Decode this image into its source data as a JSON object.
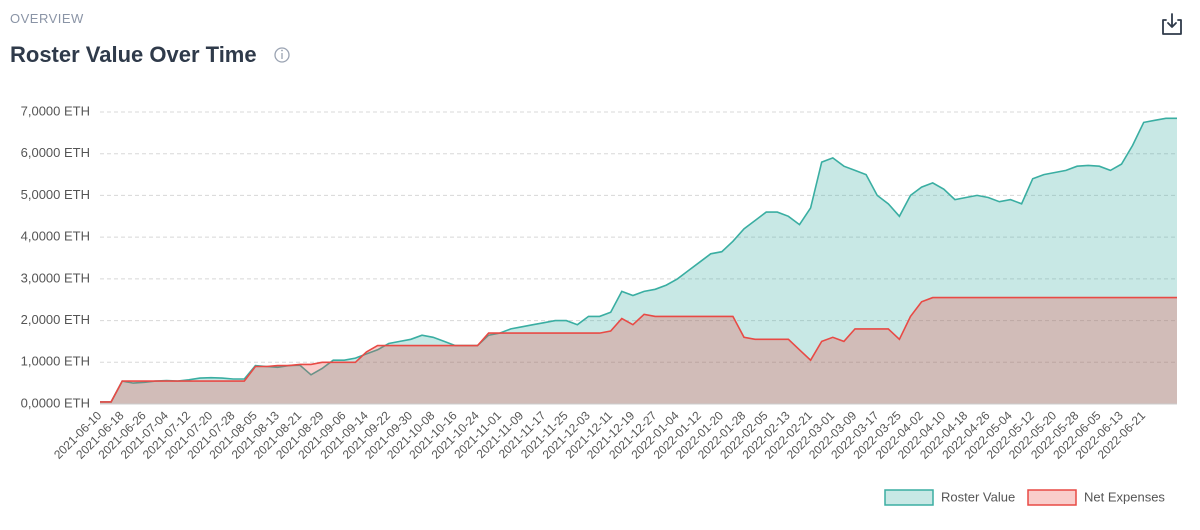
{
  "section_label": "OVERVIEW",
  "chart_data": {
    "type": "area",
    "title": "Roster Value Over Time",
    "categories": [
      "2021-06-10",
      null,
      "2021-06-18",
      null,
      "2021-06-26",
      null,
      "2021-07-04",
      null,
      "2021-07-12",
      null,
      "2021-07-20",
      null,
      "2021-07-28",
      null,
      "2021-08-05",
      null,
      "2021-08-13",
      null,
      "2021-08-21",
      null,
      "2021-08-29",
      null,
      "2021-09-06",
      null,
      "2021-09-14",
      null,
      "2021-09-22",
      null,
      "2021-09-30",
      null,
      "2021-10-08",
      null,
      "2021-10-16",
      null,
      "2021-10-24",
      null,
      "2021-11-01",
      null,
      "2021-11-09",
      null,
      "2021-11-17",
      null,
      "2021-11-25",
      null,
      "2021-12-03",
      null,
      "2021-12-11",
      null,
      "2021-12-19",
      null,
      "2021-12-27",
      null,
      "2022-01-04",
      null,
      "2022-01-12",
      null,
      "2022-01-20",
      null,
      "2022-01-28",
      null,
      "2022-02-05",
      null,
      "2022-02-13",
      null,
      "2022-02-21",
      null,
      "2022-03-01",
      null,
      "2022-03-09",
      null,
      "2022-03-17",
      null,
      "2022-03-25",
      null,
      "2022-04-02",
      null,
      "2022-04-10",
      null,
      "2022-04-18",
      null,
      "2022-04-26",
      null,
      "2022-05-04",
      null,
      "2022-05-12",
      null,
      "2022-05-20",
      null,
      "2022-05-28",
      null,
      "2022-06-05",
      null,
      "2022-06-13",
      null,
      "2022-06-21",
      null,
      null,
      null
    ],
    "series": [
      {
        "name": "Roster Value",
        "color": "#3aaea2",
        "fill": "rgba(58,174,162,0.28)",
        "values": [
          0.05,
          0.05,
          0.55,
          0.5,
          0.52,
          0.55,
          0.56,
          0.55,
          0.58,
          0.62,
          0.63,
          0.62,
          0.6,
          0.6,
          0.92,
          0.9,
          0.88,
          0.92,
          0.93,
          0.7,
          0.85,
          1.05,
          1.05,
          1.1,
          1.2,
          1.3,
          1.45,
          1.5,
          1.55,
          1.65,
          1.6,
          1.5,
          1.4,
          1.4,
          1.4,
          1.65,
          1.7,
          1.8,
          1.85,
          1.9,
          1.95,
          2.0,
          2.0,
          1.9,
          2.1,
          2.1,
          2.2,
          2.7,
          2.6,
          2.7,
          2.75,
          2.85,
          3.0,
          3.2,
          3.4,
          3.6,
          3.65,
          3.9,
          4.2,
          4.4,
          4.6,
          4.6,
          4.5,
          4.3,
          4.7,
          5.8,
          5.9,
          5.7,
          5.6,
          5.5,
          5.0,
          4.8,
          4.5,
          5.0,
          5.2,
          5.3,
          5.15,
          4.9,
          4.95,
          5.0,
          4.95,
          4.85,
          4.9,
          4.8,
          5.4,
          5.5,
          5.55,
          5.6,
          5.7,
          5.72,
          5.7,
          5.6,
          5.75,
          6.2,
          6.75,
          6.8,
          6.85,
          6.85
        ]
      },
      {
        "name": "Net Expenses",
        "color": "#e84a45",
        "fill": "rgba(232,74,69,0.28)",
        "values": [
          0.05,
          0.05,
          0.55,
          0.55,
          0.55,
          0.55,
          0.55,
          0.55,
          0.55,
          0.55,
          0.55,
          0.55,
          0.55,
          0.55,
          0.9,
          0.9,
          0.92,
          0.92,
          0.95,
          0.95,
          1.0,
          1.0,
          1.0,
          1.0,
          1.25,
          1.4,
          1.4,
          1.4,
          1.4,
          1.4,
          1.4,
          1.4,
          1.4,
          1.4,
          1.4,
          1.7,
          1.7,
          1.7,
          1.7,
          1.7,
          1.7,
          1.7,
          1.7,
          1.7,
          1.7,
          1.7,
          1.75,
          2.05,
          1.9,
          2.15,
          2.1,
          2.1,
          2.1,
          2.1,
          2.1,
          2.1,
          2.1,
          2.1,
          1.6,
          1.55,
          1.55,
          1.55,
          1.55,
          1.3,
          1.05,
          1.5,
          1.6,
          1.5,
          1.8,
          1.8,
          1.8,
          1.8,
          1.55,
          2.1,
          2.45,
          2.55,
          2.55,
          2.55,
          2.55,
          2.55,
          2.55,
          2.55,
          2.55,
          2.55,
          2.55,
          2.55,
          2.55,
          2.55,
          2.55,
          2.55,
          2.55,
          2.55,
          2.55,
          2.55,
          2.55,
          2.55,
          2.55,
          2.55
        ]
      }
    ],
    "ylim": [
      0,
      7
    ],
    "yticks": [
      {
        "value": 0,
        "label": "0,0000 ETH"
      },
      {
        "value": 1,
        "label": "1,0000 ETH"
      },
      {
        "value": 2,
        "label": "2,0000 ETH"
      },
      {
        "value": 3,
        "label": "3,0000 ETH"
      },
      {
        "value": 4,
        "label": "4,0000 ETH"
      },
      {
        "value": 5,
        "label": "5,0000 ETH"
      },
      {
        "value": 6,
        "label": "6,0000 ETH"
      },
      {
        "value": 7,
        "label": "7,0000 ETH"
      }
    ],
    "grid": true,
    "legend": "bottom-right"
  }
}
